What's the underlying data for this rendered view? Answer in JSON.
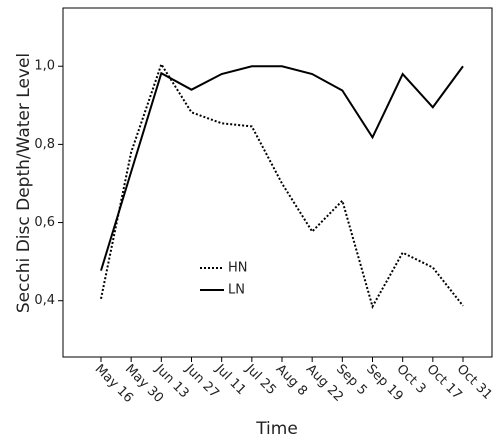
{
  "chart_data": {
    "type": "line",
    "xlabel": "Time",
    "ylabel": "Secchi Disc Depth/Water Level",
    "categories": [
      "May 16",
      "May 30",
      "Jun 13",
      "Jun 27",
      "Jul 11",
      "Jul 25",
      "Aug 8",
      "Aug 22",
      "Sep 5",
      "Sep 19",
      "Oct 3",
      "Oct 17",
      "Oct 31"
    ],
    "series": [
      {
        "name": "HN",
        "color": "#000000",
        "dash": "dotted",
        "values": [
          0.405,
          0.78,
          1.005,
          0.882,
          0.854,
          0.846,
          0.7,
          0.577,
          0.656,
          0.385,
          0.523,
          0.485,
          0.387
        ]
      },
      {
        "name": "LN",
        "color": "#000000",
        "dash": "solid",
        "values": [
          0.477,
          0.73,
          0.982,
          0.94,
          0.98,
          1.0,
          1.0,
          0.98,
          0.938,
          0.818,
          0.98,
          0.895,
          1.0
        ]
      }
    ],
    "ylim": [
      0.256,
      1.149
    ],
    "yticks": [
      {
        "value": 0.4,
        "label": "0,4"
      },
      {
        "value": 0.6,
        "label": "0,6"
      },
      {
        "value": 0.8,
        "label": "0,8"
      },
      {
        "value": 1.0,
        "label": "1,0"
      }
    ],
    "grid": false,
    "legend": "center-left"
  }
}
